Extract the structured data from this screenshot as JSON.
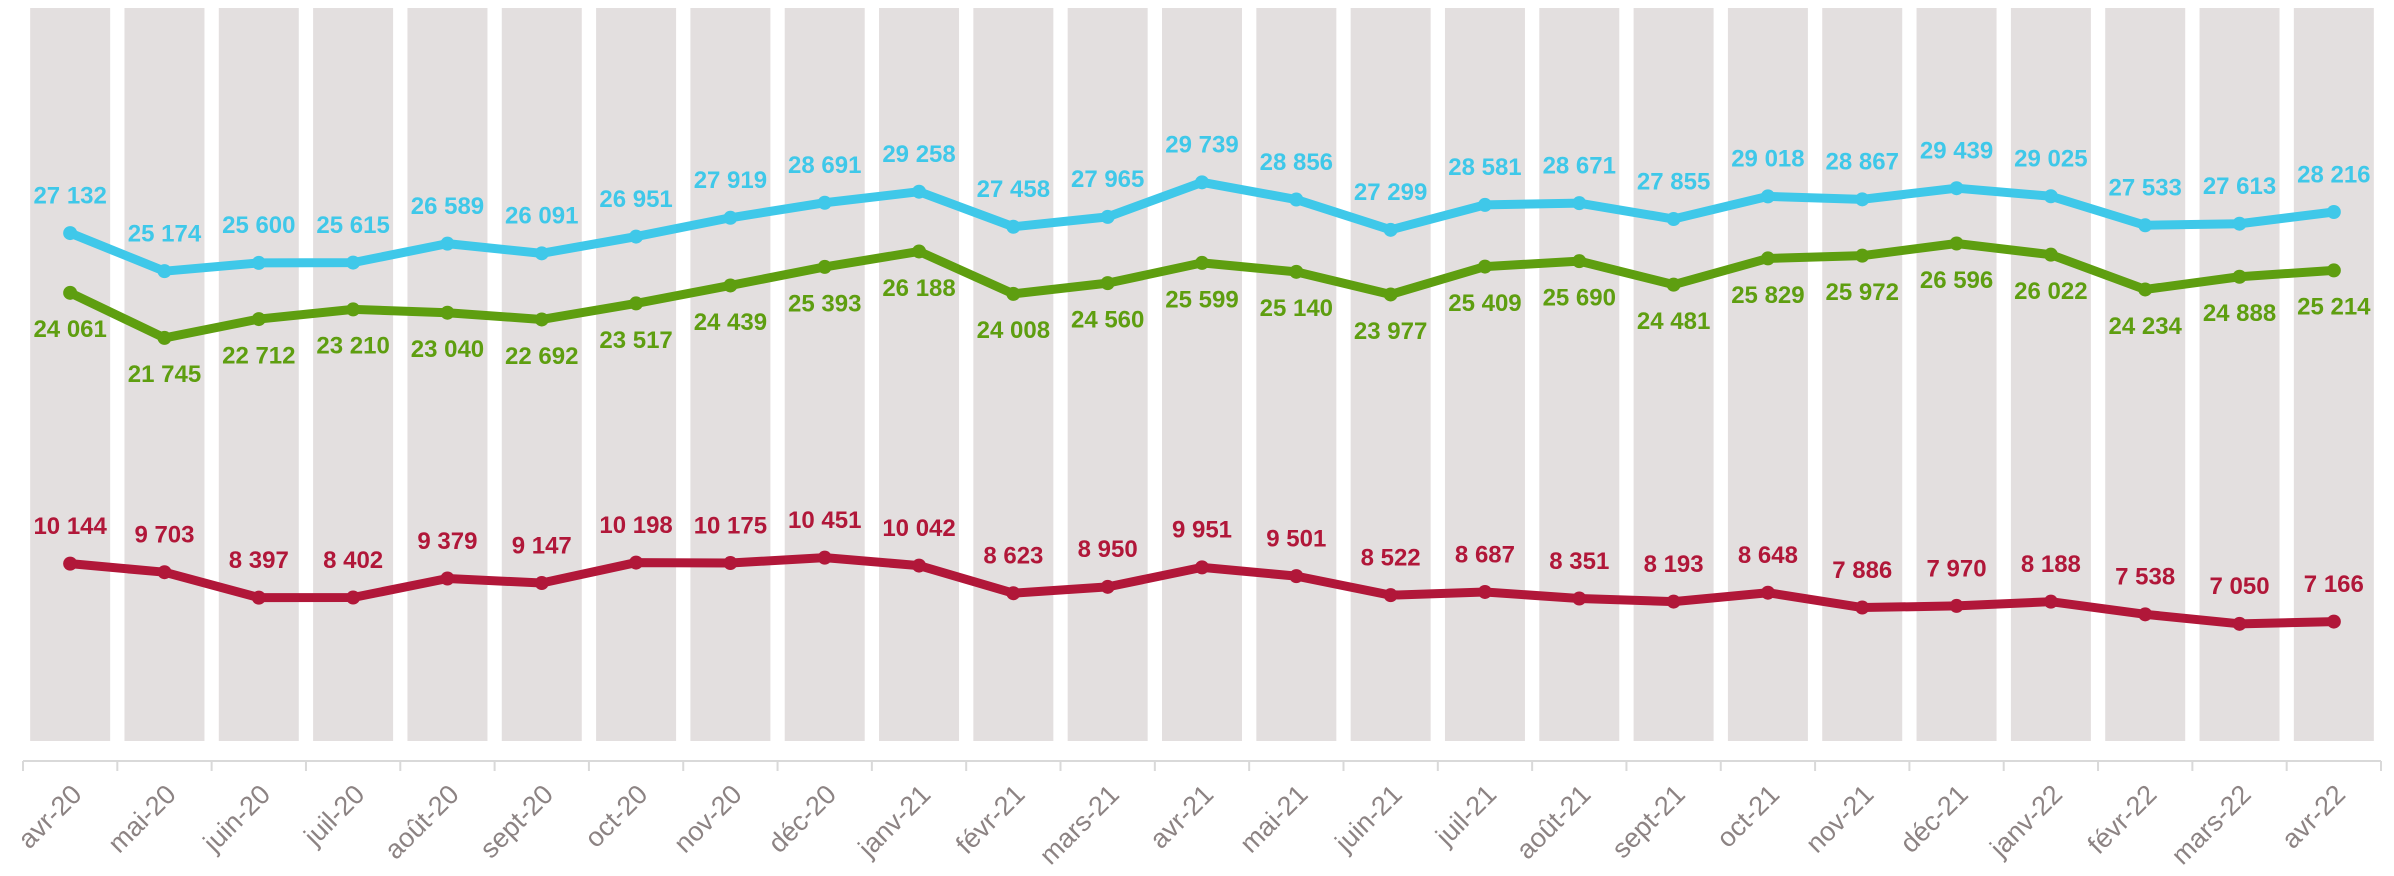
{
  "chart_data": {
    "type": "line",
    "categories": [
      "avr-20",
      "mai-20",
      "juin-20",
      "juil-20",
      "août-20",
      "sept-20",
      "oct-20",
      "nov-20",
      "déc-20",
      "janv-21",
      "févr-21",
      "mars-21",
      "avr-21",
      "mai-21",
      "juin-21",
      "juil-21",
      "août-21",
      "sept-21",
      "oct-21",
      "nov-21",
      "déc-21",
      "janv-22",
      "févr-22",
      "mars-22",
      "avr-22"
    ],
    "ylim": [
      0,
      38700
    ],
    "series": [
      {
        "color": "#3fc8e9",
        "values": [
          27132,
          25174,
          25600,
          25615,
          26589,
          26091,
          26951,
          27919,
          28691,
          29258,
          27458,
          27965,
          29739,
          28856,
          27299,
          28581,
          28671,
          27855,
          29018,
          28867,
          29439,
          29025,
          27533,
          27613,
          28216
        ],
        "value_labels": [
          "27 132",
          "25 174",
          "25 600",
          "25 615",
          "26 589",
          "26 091",
          "26 951",
          "27 919",
          "28 691",
          "29 258",
          "27 458",
          "27 965",
          "29 739",
          "28 856",
          "27 299",
          "28 581",
          "28 671",
          "27 855",
          "29 018",
          "28 867",
          "29 439",
          "29 025",
          "27 533",
          "27 613",
          "28 216"
        ]
      },
      {
        "color": "#5e9e10",
        "values": [
          24061,
          21745,
          22712,
          23210,
          23040,
          22692,
          23517,
          24439,
          25393,
          26188,
          24008,
          24560,
          25599,
          25140,
          23977,
          25409,
          25690,
          24481,
          25829,
          25972,
          26596,
          26022,
          24234,
          24888,
          25214
        ],
        "value_labels": [
          "24 061",
          "21 745",
          "22 712",
          "23 210",
          "23 040",
          "22 692",
          "23 517",
          "24 439",
          "25 393",
          "26 188",
          "24 008",
          "24 560",
          "25 599",
          "25 140",
          "23 977",
          "25 409",
          "25 690",
          "24 481",
          "25 829",
          "25 972",
          "26 596",
          "26 022",
          "24 234",
          "24 888",
          "25 214"
        ]
      },
      {
        "color": "#b11739",
        "values": [
          10144,
          9703,
          8397,
          8402,
          9379,
          9147,
          10198,
          10175,
          10451,
          10042,
          8623,
          8950,
          9951,
          9501,
          8522,
          8687,
          8351,
          8193,
          8648,
          7886,
          7970,
          8188,
          7538,
          7050,
          7166
        ],
        "value_labels": [
          "10 144",
          "9 703",
          "8 397",
          "8 402",
          "9 379",
          "9 147",
          "10 198",
          "10 175",
          "10 451",
          "10 042",
          "8 623",
          "8 950",
          "9 951",
          "9 501",
          "8 522",
          "8 687",
          "8 351",
          "8 193",
          "8 648",
          "7 886",
          "7 970",
          "8 188",
          "7 538",
          "7 050",
          "7 166"
        ]
      }
    ]
  }
}
